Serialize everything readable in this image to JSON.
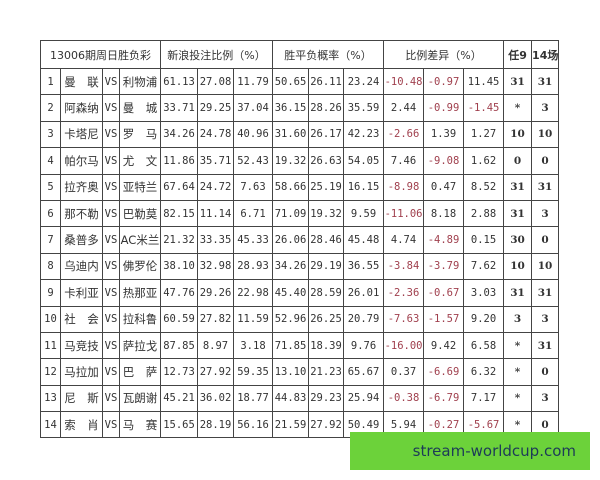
{
  "header": {
    "title": "13006期周日胜负彩",
    "sina_ratio": "新浪投注比例（%）",
    "probability": "胜平负概率（%）",
    "difference": "比例差异（%）",
    "ren9": "任9",
    "c14": "14场"
  },
  "colors": {
    "negative": "#a0404e",
    "watermark_bg": "#6cd23a"
  },
  "rows": [
    {
      "no": "1",
      "home": "曼　联",
      "vs": "VS",
      "away": "利物浦",
      "sina": [
        "61.13",
        "27.08",
        "11.79"
      ],
      "prob": [
        "50.65",
        "26.11",
        "23.24"
      ],
      "diff": [
        "-10.48",
        "-0.97",
        "11.45"
      ],
      "r9": "31",
      "c14": "31"
    },
    {
      "no": "2",
      "home": "阿森纳",
      "vs": "VS",
      "away": "曼　城",
      "sina": [
        "33.71",
        "29.25",
        "37.04"
      ],
      "prob": [
        "36.15",
        "28.26",
        "35.59"
      ],
      "diff": [
        "2.44",
        "-0.99",
        "-1.45"
      ],
      "r9": "*",
      "c14": "3"
    },
    {
      "no": "3",
      "home": "卡塔尼",
      "vs": "VS",
      "away": "罗　马",
      "sina": [
        "34.26",
        "24.78",
        "40.96"
      ],
      "prob": [
        "31.60",
        "26.17",
        "42.23"
      ],
      "diff": [
        "-2.66",
        "1.39",
        "1.27"
      ],
      "r9": "10",
      "c14": "10"
    },
    {
      "no": "4",
      "home": "帕尔马",
      "vs": "VS",
      "away": "尤　文",
      "sina": [
        "11.86",
        "35.71",
        "52.43"
      ],
      "prob": [
        "19.32",
        "26.63",
        "54.05"
      ],
      "diff": [
        "7.46",
        "-9.08",
        "1.62"
      ],
      "r9": "0",
      "c14": "0"
    },
    {
      "no": "5",
      "home": "拉齐奥",
      "vs": "VS",
      "away": "亚特兰",
      "sina": [
        "67.64",
        "24.72",
        "7.63"
      ],
      "prob": [
        "58.66",
        "25.19",
        "16.15"
      ],
      "diff": [
        "-8.98",
        "0.47",
        "8.52"
      ],
      "r9": "31",
      "c14": "31"
    },
    {
      "no": "6",
      "home": "那不勒",
      "vs": "VS",
      "away": "巴勒莫",
      "sina": [
        "82.15",
        "11.14",
        "6.71"
      ],
      "prob": [
        "71.09",
        "19.32",
        "9.59"
      ],
      "diff": [
        "-11.06",
        "8.18",
        "2.88"
      ],
      "r9": "31",
      "c14": "3"
    },
    {
      "no": "7",
      "home": "桑普多",
      "vs": "VS",
      "away": "AC米兰",
      "sina": [
        "21.32",
        "33.35",
        "45.33"
      ],
      "prob": [
        "26.06",
        "28.46",
        "45.48"
      ],
      "diff": [
        "4.74",
        "-4.89",
        "0.15"
      ],
      "r9": "30",
      "c14": "0"
    },
    {
      "no": "8",
      "home": "乌迪内",
      "vs": "VS",
      "away": "佛罗伦",
      "sina": [
        "38.10",
        "32.98",
        "28.93"
      ],
      "prob": [
        "34.26",
        "29.19",
        "36.55"
      ],
      "diff": [
        "-3.84",
        "-3.79",
        "7.62"
      ],
      "r9": "10",
      "c14": "10"
    },
    {
      "no": "9",
      "home": "卡利亚",
      "vs": "VS",
      "away": "热那亚",
      "sina": [
        "47.76",
        "29.26",
        "22.98"
      ],
      "prob": [
        "45.40",
        "28.59",
        "26.01"
      ],
      "diff": [
        "-2.36",
        "-0.67",
        "3.03"
      ],
      "r9": "31",
      "c14": "31"
    },
    {
      "no": "10",
      "home": "社　会",
      "vs": "VS",
      "away": "拉科鲁",
      "sina": [
        "60.59",
        "27.82",
        "11.59"
      ],
      "prob": [
        "52.96",
        "26.25",
        "20.79"
      ],
      "diff": [
        "-7.63",
        "-1.57",
        "9.20"
      ],
      "r9": "3",
      "c14": "3"
    },
    {
      "no": "11",
      "home": "马竞技",
      "vs": "VS",
      "away": "萨拉戈",
      "sina": [
        "87.85",
        "8.97",
        "3.18"
      ],
      "prob": [
        "71.85",
        "18.39",
        "9.76"
      ],
      "diff": [
        "-16.00",
        "9.42",
        "6.58"
      ],
      "r9": "*",
      "c14": "31"
    },
    {
      "no": "12",
      "home": "马拉加",
      "vs": "VS",
      "away": "巴　萨",
      "sina": [
        "12.73",
        "27.92",
        "59.35"
      ],
      "prob": [
        "13.10",
        "21.23",
        "65.67"
      ],
      "diff": [
        "0.37",
        "-6.69",
        "6.32"
      ],
      "r9": "*",
      "c14": "0"
    },
    {
      "no": "13",
      "home": "尼　斯",
      "vs": "VS",
      "away": "瓦朗谢",
      "sina": [
        "45.21",
        "36.02",
        "18.77"
      ],
      "prob": [
        "44.83",
        "29.23",
        "25.94"
      ],
      "diff": [
        "-0.38",
        "-6.79",
        "7.17"
      ],
      "r9": "*",
      "c14": "3"
    },
    {
      "no": "14",
      "home": "索　肖",
      "vs": "VS",
      "away": "马　赛",
      "sina": [
        "15.65",
        "28.19",
        "56.16"
      ],
      "prob": [
        "21.59",
        "27.92",
        "50.49"
      ],
      "diff": [
        "5.94",
        "-0.27",
        "-5.67"
      ],
      "r9": "*",
      "c14": "0"
    }
  ],
  "watermark": "stream-worldcup.com"
}
